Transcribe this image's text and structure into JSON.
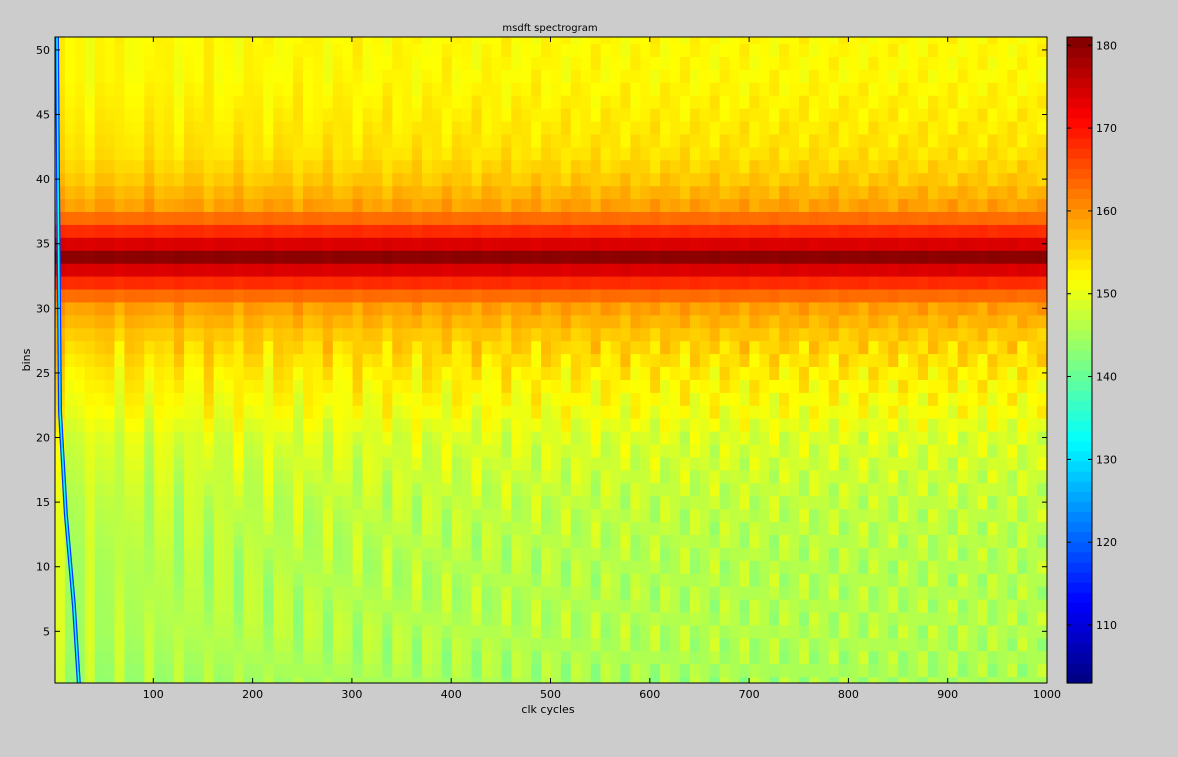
{
  "chart_data": {
    "type": "heatmap",
    "title": "msdft spectrogram",
    "xlabel": "clk cycles",
    "ylabel": "bins",
    "xlim": [
      1,
      1000
    ],
    "ylim": [
      1,
      51
    ],
    "x_ticks": [
      100,
      200,
      300,
      400,
      500,
      600,
      700,
      800,
      900,
      1000
    ],
    "y_ticks": [
      5,
      10,
      15,
      20,
      25,
      30,
      35,
      40,
      45,
      50
    ],
    "colormap": "jet",
    "clim": [
      103,
      181
    ],
    "colorbar_ticks": [
      110,
      120,
      130,
      140,
      150,
      160,
      170,
      180
    ],
    "bins": 51,
    "bin_peak_values": [
      {
        "bin": 1,
        "value": 145
      },
      {
        "bin": 5,
        "value": 146
      },
      {
        "bin": 10,
        "value": 146
      },
      {
        "bin": 15,
        "value": 147
      },
      {
        "bin": 20,
        "value": 149
      },
      {
        "bin": 22,
        "value": 151
      },
      {
        "bin": 25,
        "value": 153
      },
      {
        "bin": 28,
        "value": 156
      },
      {
        "bin": 30,
        "value": 159
      },
      {
        "bin": 31,
        "value": 163
      },
      {
        "bin": 32,
        "value": 168
      },
      {
        "bin": 33,
        "value": 174
      },
      {
        "bin": 34,
        "value": 180
      },
      {
        "bin": 35,
        "value": 174
      },
      {
        "bin": 36,
        "value": 168
      },
      {
        "bin": 37,
        "value": 163
      },
      {
        "bin": 38,
        "value": 159
      },
      {
        "bin": 40,
        "value": 156
      },
      {
        "bin": 42,
        "value": 154
      },
      {
        "bin": 45,
        "value": 153
      },
      {
        "bin": 48,
        "value": 152
      },
      {
        "bin": 51,
        "value": 152
      }
    ],
    "transient_curve": {
      "description_values": "minimum-value transient near start",
      "points": [
        [
          3,
          51
        ],
        [
          4,
          40
        ],
        [
          6,
          22
        ],
        [
          12,
          14
        ],
        [
          20,
          7
        ],
        [
          25,
          1
        ]
      ],
      "value": 125
    }
  },
  "colors": {
    "background": "#cccccc",
    "axes_border": "#000000"
  }
}
